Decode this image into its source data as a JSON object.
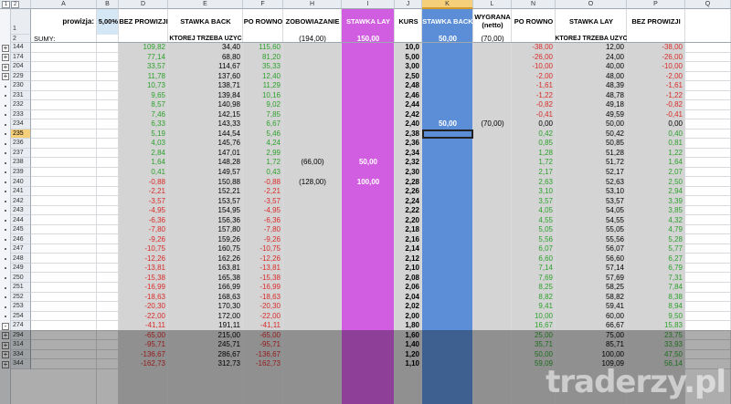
{
  "columns": [
    "A",
    "B",
    "C",
    "D",
    "E",
    "F",
    "H",
    "I",
    "J",
    "K",
    "L",
    "N",
    "O",
    "P",
    "Q"
  ],
  "outline_levels": [
    "1",
    "2"
  ],
  "header": {
    "prowizja_label": "prowizja:",
    "prowizja_value": "5,00%",
    "bez_prowizji": "BEZ PROWIZJI",
    "stawka_back": "STAWKA BACK",
    "po_rowno": "PO ROWNO",
    "zobowiazanie": "ZOBOWIAZANIE",
    "stawka_lay": "STAWKA LAY",
    "kurs": "KURS",
    "stawka_back2": "STAWKA BACK",
    "wygrana": "WYGRANA (netto)",
    "po_rowno2": "PO ROWNO",
    "stawka_lay2": "STAWKA LAY",
    "bez_prowizji2": "BEZ PROWIZJI"
  },
  "sums": {
    "label": "SUMY:",
    "ktorej1": "KTOREJ TRZEBA UZYC",
    "zob": "(194,00)",
    "lay": "150,00",
    "back": "50,00",
    "wyg": "(70,00)",
    "ktorej2": "KTOREJ TRZEBA UZYC"
  },
  "selected_row": "235",
  "rows": [
    {
      "n": "144",
      "pm": "+",
      "d": "109,82",
      "e": "34,40",
      "f": "115,60",
      "h": "",
      "i": "",
      "j": "10,0",
      "k": "",
      "l": "",
      "nn": "-38,00",
      "o": "12,00",
      "p": "-38,00"
    },
    {
      "n": "174",
      "pm": "+",
      "d": "77,14",
      "e": "68,80",
      "f": "81,20",
      "h": "",
      "i": "",
      "j": "5,00",
      "k": "",
      "l": "",
      "nn": "-26,00",
      "o": "24,00",
      "p": "-26,00"
    },
    {
      "n": "204",
      "pm": "+",
      "d": "33,57",
      "e": "114,67",
      "f": "35,33",
      "h": "",
      "i": "",
      "j": "3,00",
      "k": "",
      "l": "",
      "nn": "-10,00",
      "o": "40,00",
      "p": "-10,00"
    },
    {
      "n": "229",
      "pm": "+",
      "d": "11,78",
      "e": "137,60",
      "f": "12,40",
      "h": "",
      "i": "",
      "j": "2,50",
      "k": "",
      "l": "",
      "nn": "-2,00",
      "o": "48,00",
      "p": "-2,00"
    },
    {
      "n": "230",
      "pm": ".",
      "d": "10,73",
      "e": "138,71",
      "f": "11,29",
      "h": "",
      "i": "",
      "j": "2,48",
      "k": "",
      "l": "",
      "nn": "-1,61",
      "o": "48,39",
      "p": "-1,61"
    },
    {
      "n": "231",
      "pm": ".",
      "d": "9,65",
      "e": "139,84",
      "f": "10,16",
      "h": "",
      "i": "",
      "j": "2,46",
      "k": "",
      "l": "",
      "nn": "-1,22",
      "o": "48,78",
      "p": "-1,22"
    },
    {
      "n": "232",
      "pm": ".",
      "d": "8,57",
      "e": "140,98",
      "f": "9,02",
      "h": "",
      "i": "",
      "j": "2,44",
      "k": "",
      "l": "",
      "nn": "-0,82",
      "o": "49,18",
      "p": "-0,82"
    },
    {
      "n": "233",
      "pm": ".",
      "d": "7,46",
      "e": "142,15",
      "f": "7,85",
      "h": "",
      "i": "",
      "j": "2,42",
      "k": "",
      "l": "",
      "nn": "-0,41",
      "o": "49,59",
      "p": "-0,41"
    },
    {
      "n": "234",
      "pm": ".",
      "d": "6,33",
      "e": "143,33",
      "f": "6,67",
      "h": "",
      "i": "",
      "j": "2,40",
      "k": "50,00",
      "l": "(70,00)",
      "nn": "0,00",
      "o": "50,00",
      "p": "0,00"
    },
    {
      "n": "235",
      "pm": ".",
      "d": "5,19",
      "e": "144,54",
      "f": "5,46",
      "h": "",
      "i": "",
      "j": "2,38",
      "k": "",
      "l": "",
      "nn": "0,42",
      "o": "50,42",
      "p": "0,40"
    },
    {
      "n": "236",
      "pm": ".",
      "d": "4,03",
      "e": "145,76",
      "f": "4,24",
      "h": "",
      "i": "",
      "j": "2,36",
      "k": "",
      "l": "",
      "nn": "0,85",
      "o": "50,85",
      "p": "0,81"
    },
    {
      "n": "237",
      "pm": ".",
      "d": "2,84",
      "e": "147,01",
      "f": "2,99",
      "h": "",
      "i": "",
      "j": "2,34",
      "k": "",
      "l": "",
      "nn": "1,28",
      "o": "51,28",
      "p": "1,22"
    },
    {
      "n": "238",
      "pm": ".",
      "d": "1,64",
      "e": "148,28",
      "f": "1,72",
      "h": "(66,00)",
      "i": "50,00",
      "j": "2,32",
      "k": "",
      "l": "",
      "nn": "1,72",
      "o": "51,72",
      "p": "1,64"
    },
    {
      "n": "239",
      "pm": ".",
      "d": "0,41",
      "e": "149,57",
      "f": "0,43",
      "h": "",
      "i": "",
      "j": "2,30",
      "k": "",
      "l": "",
      "nn": "2,17",
      "o": "52,17",
      "p": "2,07"
    },
    {
      "n": "240",
      "pm": ".",
      "d": "-0,88",
      "e": "150,88",
      "f": "-0,88",
      "h": "(128,00)",
      "i": "100,00",
      "j": "2,28",
      "k": "",
      "l": "",
      "nn": "2,63",
      "o": "52,63",
      "p": "2,50"
    },
    {
      "n": "241",
      "pm": ".",
      "d": "-2,21",
      "e": "152,21",
      "f": "-2,21",
      "h": "",
      "i": "",
      "j": "2,26",
      "k": "",
      "l": "",
      "nn": "3,10",
      "o": "53,10",
      "p": "2,94"
    },
    {
      "n": "242",
      "pm": ".",
      "d": "-3,57",
      "e": "153,57",
      "f": "-3,57",
      "h": "",
      "i": "",
      "j": "2,24",
      "k": "",
      "l": "",
      "nn": "3,57",
      "o": "53,57",
      "p": "3,39"
    },
    {
      "n": "243",
      "pm": ".",
      "d": "-4,95",
      "e": "154,95",
      "f": "-4,95",
      "h": "",
      "i": "",
      "j": "2,22",
      "k": "",
      "l": "",
      "nn": "4,05",
      "o": "54,05",
      "p": "3,85"
    },
    {
      "n": "244",
      "pm": ".",
      "d": "-6,36",
      "e": "156,36",
      "f": "-6,36",
      "h": "",
      "i": "",
      "j": "2,20",
      "k": "",
      "l": "",
      "nn": "4,55",
      "o": "54,55",
      "p": "4,32"
    },
    {
      "n": "245",
      "pm": ".",
      "d": "-7,80",
      "e": "157,80",
      "f": "-7,80",
      "h": "",
      "i": "",
      "j": "2,18",
      "k": "",
      "l": "",
      "nn": "5,05",
      "o": "55,05",
      "p": "4,79"
    },
    {
      "n": "246",
      "pm": ".",
      "d": "-9,26",
      "e": "159,26",
      "f": "-9,26",
      "h": "",
      "i": "",
      "j": "2,16",
      "k": "",
      "l": "",
      "nn": "5,56",
      "o": "55,56",
      "p": "5,28"
    },
    {
      "n": "247",
      "pm": ".",
      "d": "-10,75",
      "e": "160,75",
      "f": "-10,75",
      "h": "",
      "i": "",
      "j": "2,14",
      "k": "",
      "l": "",
      "nn": "6,07",
      "o": "56,07",
      "p": "5,77"
    },
    {
      "n": "248",
      "pm": ".",
      "d": "-12,26",
      "e": "162,26",
      "f": "-12,26",
      "h": "",
      "i": "",
      "j": "2,12",
      "k": "",
      "l": "",
      "nn": "6,60",
      "o": "56,60",
      "p": "6,27"
    },
    {
      "n": "249",
      "pm": ".",
      "d": "-13,81",
      "e": "163,81",
      "f": "-13,81",
      "h": "",
      "i": "",
      "j": "2,10",
      "k": "",
      "l": "",
      "nn": "7,14",
      "o": "57,14",
      "p": "6,79"
    },
    {
      "n": "250",
      "pm": ".",
      "d": "-15,38",
      "e": "165,38",
      "f": "-15,38",
      "h": "",
      "i": "",
      "j": "2,08",
      "k": "",
      "l": "",
      "nn": "7,69",
      "o": "57,69",
      "p": "7,31"
    },
    {
      "n": "251",
      "pm": ".",
      "d": "-16,99",
      "e": "166,99",
      "f": "-16,99",
      "h": "",
      "i": "",
      "j": "2,06",
      "k": "",
      "l": "",
      "nn": "8,25",
      "o": "58,25",
      "p": "7,84"
    },
    {
      "n": "252",
      "pm": ".",
      "d": "-18,63",
      "e": "168,63",
      "f": "-18,63",
      "h": "",
      "i": "",
      "j": "2,04",
      "k": "",
      "l": "",
      "nn": "8,82",
      "o": "58,82",
      "p": "8,38"
    },
    {
      "n": "253",
      "pm": ".",
      "d": "-20,30",
      "e": "170,30",
      "f": "-20,30",
      "h": "",
      "i": "",
      "j": "2,02",
      "k": "",
      "l": "",
      "nn": "9,41",
      "o": "59,41",
      "p": "8,94"
    },
    {
      "n": "254",
      "pm": ".",
      "d": "-22,00",
      "e": "172,00",
      "f": "-22,00",
      "h": "",
      "i": "",
      "j": "2,00",
      "k": "",
      "l": "",
      "nn": "10,00",
      "o": "60,00",
      "p": "9,50"
    },
    {
      "n": "274",
      "pm": "-",
      "d": "-41,11",
      "e": "191,11",
      "f": "-41,11",
      "h": "",
      "i": "",
      "j": "1,80",
      "k": "",
      "l": "",
      "nn": "16,67",
      "o": "66,67",
      "p": "15,83"
    },
    {
      "n": "294",
      "pm": "+",
      "d": "-65,00",
      "e": "215,00",
      "f": "-65,00",
      "h": "",
      "i": "",
      "j": "1,60",
      "k": "",
      "l": "",
      "nn": "25,00",
      "o": "75,00",
      "p": "23,75"
    },
    {
      "n": "314",
      "pm": "+",
      "d": "-95,71",
      "e": "245,71",
      "f": "-95,71",
      "h": "",
      "i": "",
      "j": "1,40",
      "k": "",
      "l": "",
      "nn": "35,71",
      "o": "85,71",
      "p": "33,93"
    },
    {
      "n": "334",
      "pm": "+",
      "d": "-136,67",
      "e": "286,67",
      "f": "-136,67",
      "h": "",
      "i": "",
      "j": "1,20",
      "k": "",
      "l": "",
      "nn": "50,00",
      "o": "100,00",
      "p": "47,50"
    },
    {
      "n": "344",
      "pm": "+",
      "d": "-162,73",
      "e": "312,73",
      "f": "-162,73",
      "h": "",
      "i": "",
      "j": "1,10",
      "k": "",
      "l": "",
      "nn": "59,09",
      "o": "109,09",
      "p": "56,14"
    }
  ],
  "watermark": "traderzy.pl",
  "colors": {
    "lay_purple": "#d15ee0",
    "back_blue": "#5b8ed6",
    "grey_band": "#d4d4d4",
    "prowizja_bg": "#d5e6f5",
    "positive": "#2da12d",
    "negative": "#d92b2b"
  }
}
